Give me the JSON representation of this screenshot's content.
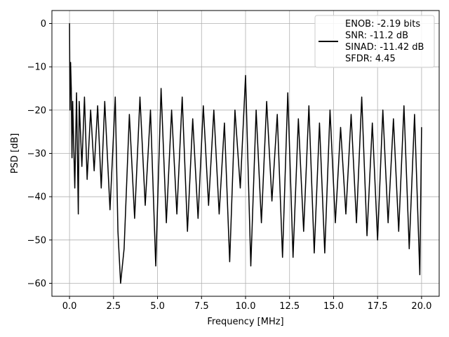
{
  "chart_data": {
    "type": "line",
    "title": "",
    "xlabel": "Frequency [MHz]",
    "ylabel": "PSD [dB]",
    "xlim": [
      -1.0,
      21.0
    ],
    "ylim": [
      -63,
      3
    ],
    "xticks": [
      0.0,
      2.5,
      5.0,
      7.5,
      10.0,
      12.5,
      15.0,
      17.5,
      20.0
    ],
    "xtick_labels": [
      "0.0",
      "2.5",
      "5.0",
      "7.5",
      "10.0",
      "12.5",
      "15.0",
      "17.5",
      "20.0"
    ],
    "yticks": [
      0,
      -10,
      -20,
      -30,
      -40,
      -50,
      -60
    ],
    "ytick_labels": [
      "0",
      "−10",
      "−20",
      "−30",
      "−40",
      "−50",
      "−60"
    ],
    "grid": true,
    "legend_position": "top-right",
    "series": [
      {
        "color": "#000000",
        "x": [
          0.0,
          0.03,
          0.06,
          0.1,
          0.14,
          0.18,
          0.22,
          0.3,
          0.4,
          0.5,
          0.55,
          0.7,
          0.85,
          1.0,
          1.2,
          1.4,
          1.6,
          1.8,
          2.0,
          2.3,
          2.6,
          2.75,
          2.9,
          3.1,
          3.4,
          3.7,
          4.0,
          4.3,
          4.6,
          4.9,
          5.2,
          5.5,
          5.8,
          6.1,
          6.4,
          6.7,
          7.0,
          7.3,
          7.6,
          7.9,
          8.2,
          8.5,
          8.8,
          9.1,
          9.4,
          9.7,
          10.0,
          10.3,
          10.6,
          10.9,
          11.2,
          11.5,
          11.8,
          12.1,
          12.4,
          12.7,
          13.0,
          13.3,
          13.6,
          13.9,
          14.2,
          14.5,
          14.8,
          15.1,
          15.4,
          15.7,
          16.0,
          16.3,
          16.6,
          16.9,
          17.2,
          17.5,
          17.8,
          18.1,
          18.4,
          18.7,
          19.0,
          19.3,
          19.6,
          19.9,
          20.0
        ],
        "y": [
          0,
          -20,
          -9,
          -15,
          -31,
          -18,
          -25,
          -38,
          -16,
          -44,
          -18,
          -33,
          -17,
          -36,
          -20,
          -34,
          -19,
          -38,
          -18,
          -43,
          -17,
          -48,
          -60,
          -52,
          -21,
          -45,
          -17,
          -42,
          -20,
          -56,
          -15,
          -46,
          -20,
          -44,
          -17,
          -48,
          -22,
          -45,
          -19,
          -42,
          -20,
          -44,
          -23,
          -55,
          -20,
          -38,
          -12,
          -56,
          -20,
          -46,
          -18,
          -41,
          -21,
          -54,
          -16,
          -54,
          -22,
          -48,
          -19,
          -53,
          -23,
          -53,
          -20,
          -46,
          -24,
          -44,
          -21,
          -46,
          -17,
          -49,
          -23,
          -50,
          -20,
          -46,
          -22,
          -48,
          -19,
          -52,
          -21,
          -58,
          -24
        ]
      }
    ],
    "legend": {
      "lines": [
        "ENOB: -2.19 bits",
        "SNR: -11.2 dB",
        "SINAD: -11.42 dB",
        "SFDR: 4.45"
      ]
    }
  }
}
